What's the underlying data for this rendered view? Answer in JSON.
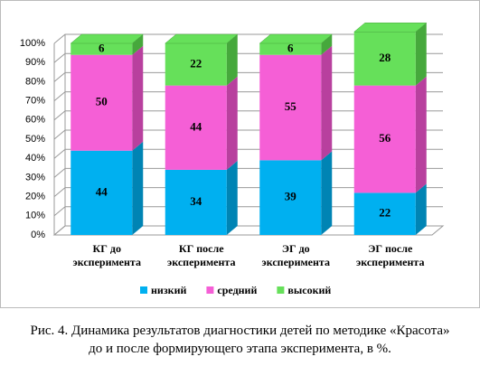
{
  "chart_data": {
    "type": "stacked-bar-3d",
    "categories": [
      "КГ до эксперимента",
      "КГ после эксперимента",
      "ЭГ до эксперимента",
      "ЭГ после эксперимента"
    ],
    "series": [
      {
        "name": "низкий",
        "color": "#00b0f0",
        "side": "#0084b4",
        "values": [
          44,
          34,
          39,
          22
        ]
      },
      {
        "name": "средний",
        "color": "#f55fd6",
        "side": "#b8409e",
        "values": [
          50,
          44,
          55,
          56
        ]
      },
      {
        "name": "высокий",
        "color": "#66e05a",
        "side": "#46a83c",
        "values": [
          6,
          22,
          6,
          28
        ]
      }
    ],
    "ylim": [
      0,
      100
    ],
    "yticks": [
      {
        "value": 0,
        "label": "0%"
      },
      {
        "value": 10,
        "label": "10%"
      },
      {
        "value": 20,
        "label": "20%"
      },
      {
        "value": 30,
        "label": "30%"
      },
      {
        "value": 40,
        "label": "40%"
      },
      {
        "value": 50,
        "label": "50%"
      },
      {
        "value": 60,
        "label": "60%"
      },
      {
        "value": 70,
        "label": "70%"
      },
      {
        "value": 80,
        "label": "80%"
      },
      {
        "value": 90,
        "label": "90%"
      },
      {
        "value": 100,
        "label": "100%"
      }
    ],
    "grid": true,
    "caption": [
      "Рис. 4. Динамика результатов диагностики детей по методике «Красота»",
      "до и после формирующего этапа эксперимента, в %."
    ]
  }
}
